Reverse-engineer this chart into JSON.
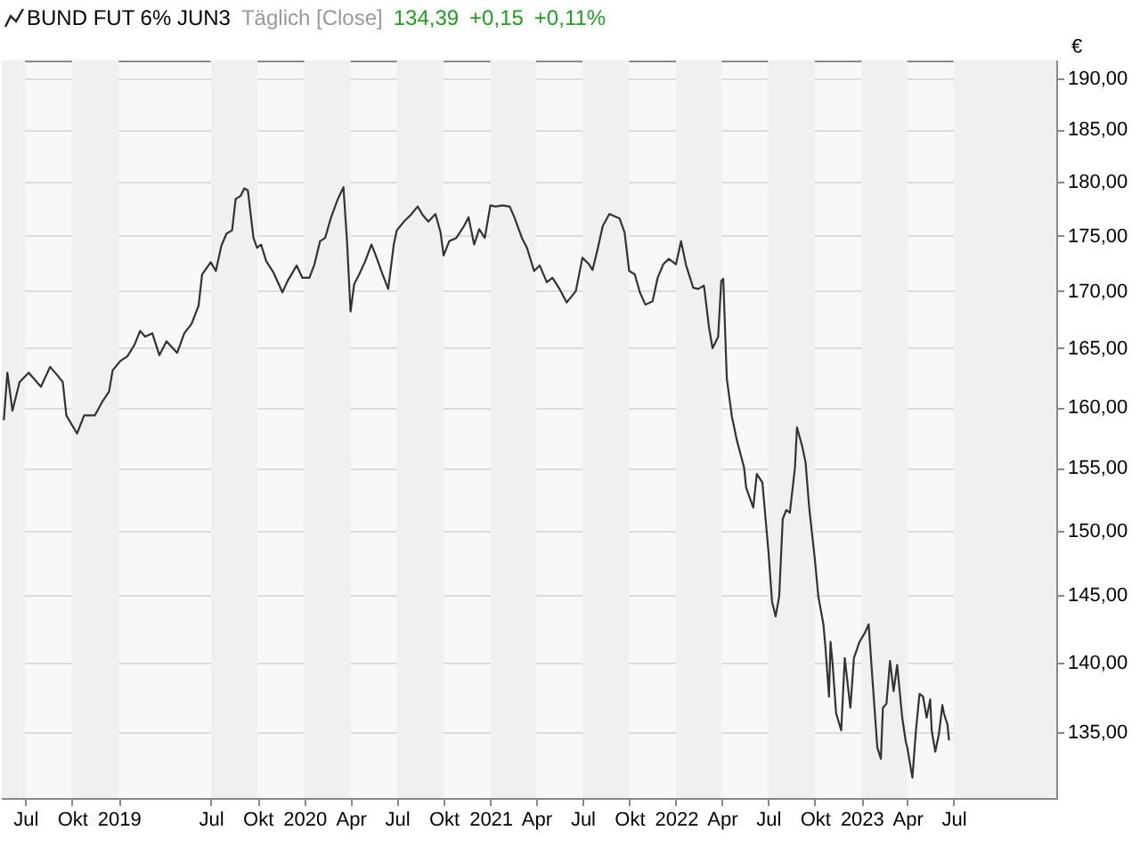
{
  "chart_data": {
    "type": "line",
    "title": "BUND FUT 6% JUN3",
    "subtitle": "Täglich [Close]",
    "annotations": [
      "134,39",
      "+0,15",
      "+0,11%"
    ],
    "ylabel": "€",
    "x": [
      "2018-05-20",
      "2018-05-27",
      "2018-06-06",
      "2018-06-20",
      "2018-07-08",
      "2018-08-01",
      "2018-08-19",
      "2018-09-02",
      "2018-09-13",
      "2018-09-20",
      "2018-10-11",
      "2018-10-25",
      "2018-11-15",
      "2018-11-29",
      "2018-12-13",
      "2018-12-20",
      "2019-01-04",
      "2019-01-18",
      "2019-02-01",
      "2019-02-12",
      "2019-02-22",
      "2019-03-08",
      "2019-03-22",
      "2019-04-05",
      "2019-04-26",
      "2019-05-10",
      "2019-05-24",
      "2019-06-07",
      "2019-06-14",
      "2019-07-01",
      "2019-07-11",
      "2019-07-22",
      "2019-08-01",
      "2019-08-12",
      "2019-08-19",
      "2019-08-29",
      "2019-09-05",
      "2019-09-12",
      "2019-09-23",
      "2019-09-30",
      "2019-10-08",
      "2019-10-18",
      "2019-11-01",
      "2019-11-19",
      "2019-11-29",
      "2019-12-17",
      "2019-12-28",
      "2020-01-11",
      "2020-01-21",
      "2020-02-01",
      "2020-02-11",
      "2020-02-22",
      "2020-03-07",
      "2020-03-18",
      "2020-03-25",
      "2020-04-01",
      "2020-04-08",
      "2020-04-18",
      "2020-04-30",
      "2020-05-12",
      "2020-05-19",
      "2020-06-03",
      "2020-06-14",
      "2020-06-25",
      "2020-07-01",
      "2020-07-15",
      "2020-07-28",
      "2020-08-11",
      "2020-08-21",
      "2020-09-01",
      "2020-09-15",
      "2020-09-25",
      "2020-10-01",
      "2020-10-12",
      "2020-10-26",
      "2020-11-09",
      "2020-11-19",
      "2020-11-30",
      "2020-12-10",
      "2020-12-21",
      "2021-01-01",
      "2021-01-11",
      "2021-01-25",
      "2021-02-08",
      "2021-02-18",
      "2021-03-04",
      "2021-03-14",
      "2021-03-28",
      "2021-04-08",
      "2021-04-22",
      "2021-05-03",
      "2021-05-17",
      "2021-05-31",
      "2021-06-18",
      "2021-07-01",
      "2021-07-14",
      "2021-07-21",
      "2021-07-31",
      "2021-08-10",
      "2021-08-23",
      "2021-09-12",
      "2021-09-22",
      "2021-10-01",
      "2021-10-12",
      "2021-10-22",
      "2021-11-02",
      "2021-11-16",
      "2021-11-26",
      "2021-12-07",
      "2021-12-18",
      "2022-01-01",
      "2022-01-11",
      "2022-01-21",
      "2022-02-04",
      "2022-02-14",
      "2022-02-25",
      "2022-03-07",
      "2022-03-14",
      "2022-03-25",
      "2022-03-31",
      "2022-04-04",
      "2022-04-11",
      "2022-04-21",
      "2022-05-01",
      "2022-05-15",
      "2022-05-19",
      "2022-06-02",
      "2022-06-09",
      "2022-06-20",
      "2022-06-23",
      "2022-07-02",
      "2022-07-09",
      "2022-07-16",
      "2022-07-23",
      "2022-07-30",
      "2022-08-06",
      "2022-08-13",
      "2022-08-23",
      "2022-08-27",
      "2022-09-06",
      "2022-09-13",
      "2022-09-20",
      "2022-10-01",
      "2022-10-08",
      "2022-10-18",
      "2022-10-22",
      "2022-10-29",
      "2022-11-01",
      "2022-11-05",
      "2022-11-12",
      "2022-11-22",
      "2022-11-29",
      "2022-12-10",
      "2022-12-17",
      "2022-12-28",
      "2023-01-08",
      "2023-01-15",
      "2023-01-22",
      "2023-02-01",
      "2023-02-08",
      "2023-02-12",
      "2023-02-19",
      "2023-02-26",
      "2023-03-05",
      "2023-03-12",
      "2023-03-22",
      "2023-03-29",
      "2023-04-01",
      "2023-04-08",
      "2023-04-11",
      "2023-04-18",
      "2023-04-25",
      "2023-05-02",
      "2023-05-09",
      "2023-05-16",
      "2023-05-19",
      "2023-05-26",
      "2023-06-02",
      "2023-06-09",
      "2023-06-12",
      "2023-06-19",
      "2023-06-22"
    ],
    "series": [
      {
        "color": "#333333",
        "values": [
          158.9,
          162.9,
          159.7,
          162.1,
          162.9,
          161.7,
          163.4,
          162.7,
          162.1,
          159.3,
          157.8,
          159.3,
          159.3,
          160.4,
          161.3,
          163.1,
          163.9,
          164.3,
          165.3,
          166.5,
          166.0,
          166.3,
          164.4,
          165.6,
          164.6,
          166.3,
          167.1,
          168.7,
          171.5,
          172.6,
          171.8,
          174.1,
          175.2,
          175.5,
          178.4,
          178.7,
          179.4,
          179.2,
          174.8,
          173.9,
          174.2,
          172.7,
          171.7,
          169.9,
          170.9,
          172.3,
          171.2,
          171.2,
          172.4,
          174.5,
          174.8,
          176.6,
          178.4,
          179.5,
          174.5,
          168.2,
          170.6,
          171.5,
          172.7,
          174.2,
          173.4,
          171.5,
          170.2,
          174.2,
          175.5,
          176.3,
          176.9,
          177.7,
          176.9,
          176.3,
          177.0,
          175.3,
          173.2,
          174.5,
          174.8,
          175.8,
          176.7,
          174.2,
          175.6,
          174.8,
          177.8,
          177.7,
          177.8,
          177.7,
          176.6,
          174.8,
          173.9,
          171.8,
          172.3,
          170.8,
          171.2,
          170.2,
          169.0,
          170.0,
          173.0,
          172.4,
          171.9,
          173.8,
          175.9,
          177.0,
          176.6,
          175.3,
          171.8,
          171.5,
          169.9,
          168.8,
          169.1,
          171.2,
          172.4,
          172.9,
          172.4,
          174.5,
          172.3,
          170.3,
          170.2,
          170.5,
          166.8,
          165.0,
          166.0,
          170.9,
          171.1,
          162.4,
          159.2,
          157.2,
          155.0,
          153.4,
          151.8,
          154.5,
          153.8,
          152.4,
          148.3,
          144.5,
          143.4,
          144.9,
          150.9,
          151.6,
          151.4,
          155.0,
          158.3,
          156.8,
          155.4,
          151.8,
          147.8,
          144.9,
          142.8,
          141.1,
          137.5,
          141.5,
          139.9,
          136.3,
          135.1,
          140.3,
          136.7,
          140.3,
          141.5,
          142.2,
          142.8,
          139.0,
          133.9,
          133.1,
          136.7,
          137.0,
          140.1,
          137.9,
          139.8,
          136.0,
          134.3,
          133.9,
          132.4,
          131.8,
          135.1,
          137.7,
          137.5,
          136.0,
          137.3,
          135.1,
          133.6,
          134.8,
          136.9,
          136.3,
          135.5,
          134.39
        ]
      }
    ],
    "xlim": [
      "2018-05-16",
      "2024-01-19"
    ],
    "xticks": [
      {
        "value": "2018-07-01",
        "label": "Jul"
      },
      {
        "value": "2018-10-01",
        "label": "Okt"
      },
      {
        "value": "2019-01-01",
        "label": "2019"
      },
      {
        "value": "2019-07-01",
        "label": "Jul"
      },
      {
        "value": "2019-10-01",
        "label": "Okt"
      },
      {
        "value": "2020-01-01",
        "label": "2020"
      },
      {
        "value": "2020-04-01",
        "label": "Apr"
      },
      {
        "value": "2020-07-01",
        "label": "Jul"
      },
      {
        "value": "2020-10-01",
        "label": "Okt"
      },
      {
        "value": "2021-01-01",
        "label": "2021"
      },
      {
        "value": "2021-04-01",
        "label": "Apr"
      },
      {
        "value": "2021-07-01",
        "label": "Jul"
      },
      {
        "value": "2021-10-01",
        "label": "Okt"
      },
      {
        "value": "2022-01-01",
        "label": "2022"
      },
      {
        "value": "2022-04-01",
        "label": "Apr"
      },
      {
        "value": "2022-07-01",
        "label": "Jul"
      },
      {
        "value": "2022-10-01",
        "label": "Okt"
      },
      {
        "value": "2023-01-01",
        "label": "2023"
      },
      {
        "value": "2023-04-01",
        "label": "Apr"
      },
      {
        "value": "2023-07-01",
        "label": "Jul"
      }
    ],
    "ylim": [
      130.4,
      191.8
    ],
    "yticks": [
      {
        "value": 135,
        "label": "135,00"
      },
      {
        "value": 140,
        "label": "140,00"
      },
      {
        "value": 145,
        "label": "145,00"
      },
      {
        "value": 150,
        "label": "150,00"
      },
      {
        "value": 155,
        "label": "155,00"
      },
      {
        "value": 160,
        "label": "160,00"
      },
      {
        "value": 165,
        "label": "165,00"
      },
      {
        "value": 170,
        "label": "170,00"
      },
      {
        "value": 175,
        "label": "175,00"
      },
      {
        "value": 180,
        "label": "180,00"
      },
      {
        "value": 185,
        "label": "185,00"
      },
      {
        "value": 190,
        "label": "190,00"
      }
    ],
    "log": "y",
    "grid": "y",
    "bands": [
      {
        "axis": "x",
        "from": "2018-05-16",
        "to": "2018-07-01",
        "color": "#f0f0f0"
      },
      {
        "axis": "x",
        "from": "2018-10-01",
        "to": "2019-01-01",
        "color": "#f0f0f0"
      },
      {
        "axis": "x",
        "from": "2019-07-01",
        "to": "2019-10-01",
        "color": "#f0f0f0"
      },
      {
        "axis": "x",
        "from": "2020-01-01",
        "to": "2020-04-01",
        "color": "#f0f0f0"
      },
      {
        "axis": "x",
        "from": "2020-07-01",
        "to": "2020-10-01",
        "color": "#f0f0f0"
      },
      {
        "axis": "x",
        "from": "2021-01-01",
        "to": "2021-04-01",
        "color": "#f0f0f0"
      },
      {
        "axis": "x",
        "from": "2021-07-01",
        "to": "2021-10-01",
        "color": "#f0f0f0"
      },
      {
        "axis": "x",
        "from": "2022-01-01",
        "to": "2022-04-01",
        "color": "#f0f0f0"
      },
      {
        "axis": "x",
        "from": "2022-07-01",
        "to": "2022-10-01",
        "color": "#f0f0f0"
      },
      {
        "axis": "x",
        "from": "2023-01-01",
        "to": "2023-04-01",
        "color": "#f0f0f0"
      },
      {
        "axis": "x",
        "from": "2023-07-01",
        "to": "2024-01-19",
        "color": "#f0f0f0"
      }
    ]
  }
}
